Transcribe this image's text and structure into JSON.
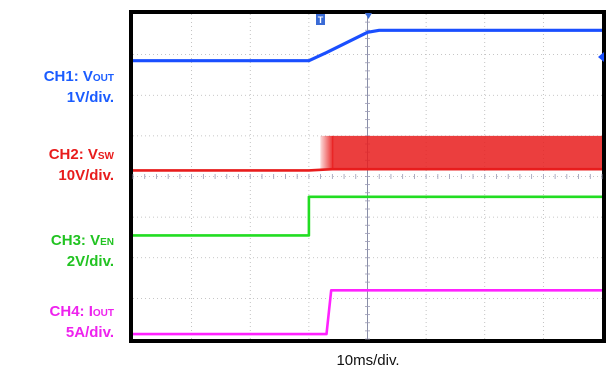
{
  "chart_data": {
    "type": "line",
    "title": "",
    "x_divisions": 8,
    "y_divisions": 8,
    "x_unit": "10ms/div.",
    "grid": true,
    "trigger_marker": "T",
    "series": [
      {
        "name_main": "CH1: V",
        "name_sub": "OUT",
        "scale": "1V/div.",
        "color": "#1a4fff",
        "points": [
          [
            0,
            6.85
          ],
          [
            3.0,
            6.85
          ],
          [
            3.3,
            7.05
          ],
          [
            4.0,
            7.55
          ],
          [
            4.2,
            7.6
          ],
          [
            8.0,
            7.6
          ]
        ]
      },
      {
        "name_main": "CH2: V",
        "name_sub": "SW",
        "scale": "10V/div.",
        "color": "#e81c1c",
        "points": [
          [
            0,
            4.15
          ],
          [
            3.0,
            4.15
          ],
          [
            3.4,
            4.18
          ],
          [
            8.0,
            4.18
          ]
        ],
        "switching_band": {
          "x_start": 3.4,
          "x_end": 8.0,
          "low": 4.18,
          "high": 5.0
        }
      },
      {
        "name_main": "CH3: V",
        "name_sub": "EN",
        "scale": "2V/div.",
        "color": "#22dd22",
        "points": [
          [
            0,
            2.55
          ],
          [
            3.0,
            2.55
          ],
          [
            3.0,
            3.5
          ],
          [
            8.0,
            3.5
          ]
        ]
      },
      {
        "name_main": "CH4: I",
        "name_sub": "OUT",
        "scale": "5A/div.",
        "color": "#ff22ff",
        "points": [
          [
            0,
            0.12
          ],
          [
            3.3,
            0.12
          ],
          [
            3.38,
            1.2
          ],
          [
            8.0,
            1.2
          ]
        ]
      }
    ]
  }
}
